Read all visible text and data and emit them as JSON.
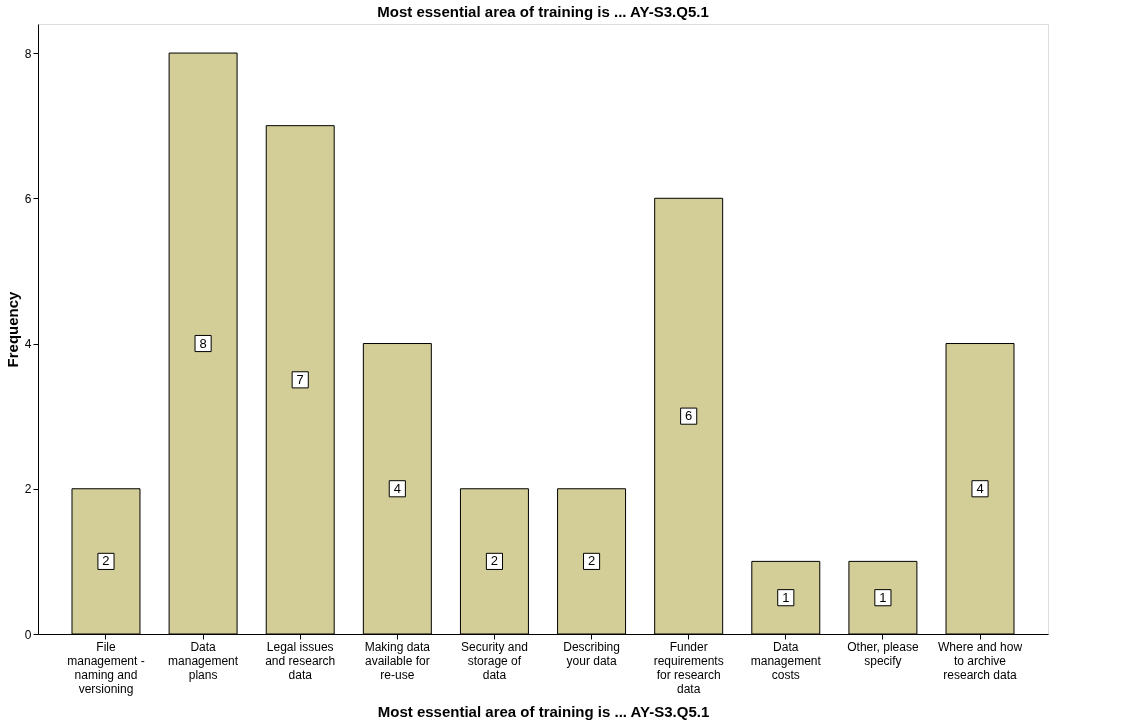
{
  "chart_data": {
    "type": "bar",
    "title": "Most essential area of training is ... AY-S3.Q5.1",
    "xlabel": "Most essential area of training is ... AY-S3.Q5.1",
    "ylabel": "Frequency",
    "categories": [
      "File management - naming and versioning",
      "Data management plans",
      "Legal issues and research data",
      "Making data available for re-use",
      "Security and storage of data",
      "Describing your data",
      "Funder requirements for research data",
      "Data management costs",
      "Other, please specify",
      "Where and how to archive research data"
    ],
    "values": [
      2,
      8,
      7,
      4,
      2,
      2,
      6,
      1,
      1,
      4
    ],
    "color": "#d3ce97",
    "ylim": [
      0,
      8.4
    ],
    "yticks": [
      0,
      2,
      4,
      6,
      8
    ],
    "grid": false,
    "data_labels": true
  }
}
